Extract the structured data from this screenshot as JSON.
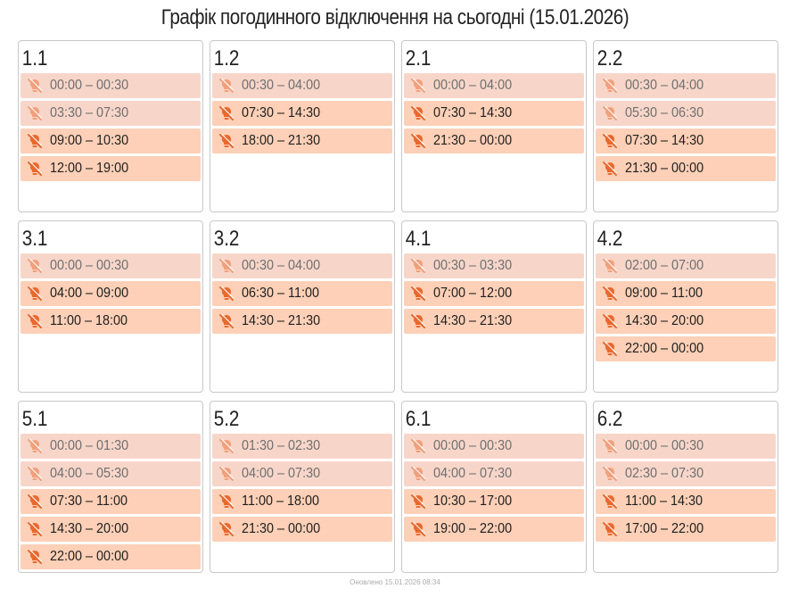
{
  "title": "Графік погодинного відключення на сьогодні (15.01.2026)",
  "groups": [
    {
      "name": "1.1",
      "slots": [
        {
          "time": "00:00 – 00:30",
          "past": true
        },
        {
          "time": "03:30 – 07:30",
          "past": true
        },
        {
          "time": "09:00 – 10:30",
          "past": false
        },
        {
          "time": "12:00 – 19:00",
          "past": false
        }
      ]
    },
    {
      "name": "1.2",
      "slots": [
        {
          "time": "00:30 – 04:00",
          "past": true
        },
        {
          "time": "07:30 – 14:30",
          "past": false
        },
        {
          "time": "18:00 – 21:30",
          "past": false
        }
      ]
    },
    {
      "name": "2.1",
      "slots": [
        {
          "time": "00:00 – 04:00",
          "past": true
        },
        {
          "time": "07:30 – 14:30",
          "past": false
        },
        {
          "time": "21:30 – 00:00",
          "past": false
        }
      ]
    },
    {
      "name": "2.2",
      "slots": [
        {
          "time": "00:30 – 04:00",
          "past": true
        },
        {
          "time": "05:30 – 06:30",
          "past": true
        },
        {
          "time": "07:30 – 14:30",
          "past": false
        },
        {
          "time": "21:30 – 00:00",
          "past": false
        }
      ]
    },
    {
      "name": "3.1",
      "slots": [
        {
          "time": "00:00 – 00:30",
          "past": true
        },
        {
          "time": "04:00 – 09:00",
          "past": false
        },
        {
          "time": "11:00 – 18:00",
          "past": false
        }
      ]
    },
    {
      "name": "3.2",
      "slots": [
        {
          "time": "00:30 – 04:00",
          "past": true
        },
        {
          "time": "06:30 – 11:00",
          "past": false
        },
        {
          "time": "14:30 – 21:30",
          "past": false
        }
      ]
    },
    {
      "name": "4.1",
      "slots": [
        {
          "time": "00:30 – 03:30",
          "past": true
        },
        {
          "time": "07:00 – 12:00",
          "past": false
        },
        {
          "time": "14:30 – 21:30",
          "past": false
        }
      ]
    },
    {
      "name": "4.2",
      "slots": [
        {
          "time": "02:00 – 07:00",
          "past": true
        },
        {
          "time": "09:00 – 11:00",
          "past": false
        },
        {
          "time": "14:30 – 20:00",
          "past": false
        },
        {
          "time": "22:00 – 00:00",
          "past": false
        }
      ]
    },
    {
      "name": "5.1",
      "slots": [
        {
          "time": "00:00 – 01:30",
          "past": true
        },
        {
          "time": "04:00 – 05:30",
          "past": true
        },
        {
          "time": "07:30 – 11:00",
          "past": false
        },
        {
          "time": "14:30 – 20:00",
          "past": false
        },
        {
          "time": "22:00 – 00:00",
          "past": false
        }
      ]
    },
    {
      "name": "5.2",
      "slots": [
        {
          "time": "01:30 – 02:30",
          "past": true
        },
        {
          "time": "04:00 – 07:30",
          "past": true
        },
        {
          "time": "11:00 – 18:00",
          "past": false
        },
        {
          "time": "21:30 – 00:00",
          "past": false
        }
      ]
    },
    {
      "name": "6.1",
      "slots": [
        {
          "time": "00:00 – 00:30",
          "past": true
        },
        {
          "time": "04:00 – 07:30",
          "past": true
        },
        {
          "time": "10:30 – 17:00",
          "past": false
        },
        {
          "time": "19:00 – 22:00",
          "past": false
        }
      ]
    },
    {
      "name": "6.2",
      "slots": [
        {
          "time": "00:00 – 00:30",
          "past": true
        },
        {
          "time": "02:30 – 07:30",
          "past": true
        },
        {
          "time": "11:00 – 14:30",
          "past": false
        },
        {
          "time": "17:00 – 22:00",
          "past": false
        }
      ]
    }
  ],
  "footer": "Оновлено 15.01.2026 08:34"
}
